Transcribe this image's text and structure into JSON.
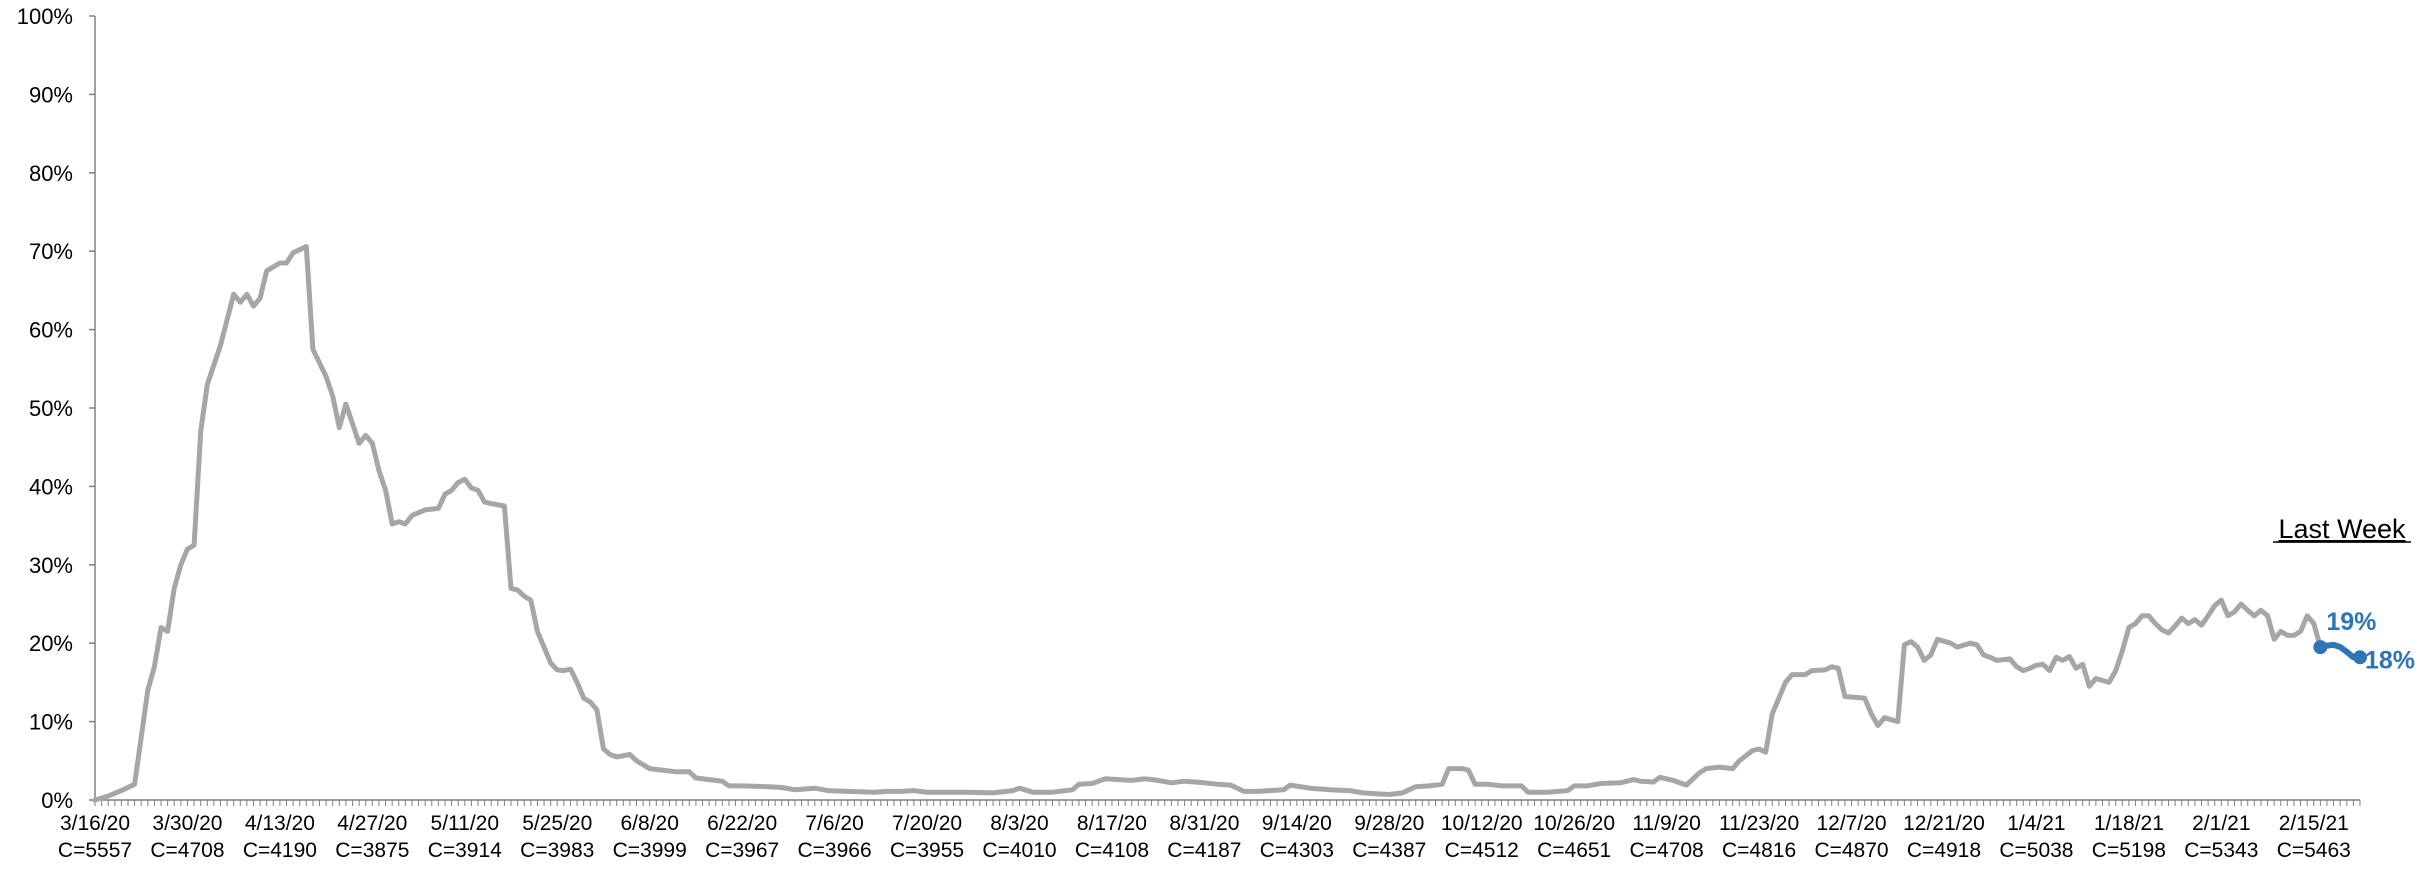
{
  "chart_data": {
    "type": "line",
    "title": "",
    "xlabel": "",
    "ylabel": "",
    "ylim": [
      0,
      100
    ],
    "y_tick_labels": [
      "0%",
      "10%",
      "20%",
      "30%",
      "40%",
      "50%",
      "60%",
      "70%",
      "80%",
      "90%",
      "100%"
    ],
    "grid": false,
    "x_tick_labels": [
      {
        "date": "3/16/20",
        "count": "C=5557"
      },
      {
        "date": "3/30/20",
        "count": "C=4708"
      },
      {
        "date": "4/13/20",
        "count": "C=4190"
      },
      {
        "date": "4/27/20",
        "count": "C=3875"
      },
      {
        "date": "5/11/20",
        "count": "C=3914"
      },
      {
        "date": "5/25/20",
        "count": "C=3983"
      },
      {
        "date": "6/8/20",
        "count": "C=3999"
      },
      {
        "date": "6/22/20",
        "count": "C=3967"
      },
      {
        "date": "7/6/20",
        "count": "C=3966"
      },
      {
        "date": "7/20/20",
        "count": "C=3955"
      },
      {
        "date": "8/3/20",
        "count": "C=4010"
      },
      {
        "date": "8/17/20",
        "count": "C=4108"
      },
      {
        "date": "8/31/20",
        "count": "C=4187"
      },
      {
        "date": "9/14/20",
        "count": "C=4303"
      },
      {
        "date": "9/28/20",
        "count": "C=4387"
      },
      {
        "date": "10/12/20",
        "count": "C=4512"
      },
      {
        "date": "10/26/20",
        "count": "C=4651"
      },
      {
        "date": "11/9/20",
        "count": "C=4708"
      },
      {
        "date": "11/23/20",
        "count": "C=4816"
      },
      {
        "date": "12/7/20",
        "count": "C=4870"
      },
      {
        "date": "12/21/20",
        "count": "C=4918"
      },
      {
        "date": "1/4/21",
        "count": "C=5038"
      },
      {
        "date": "1/18/21",
        "count": "C=5198"
      },
      {
        "date": "2/1/21",
        "count": "C=5343"
      },
      {
        "date": "2/15/21",
        "count": "C=5463"
      }
    ],
    "series": [
      {
        "color": "#A6A6A6",
        "points": [
          [
            "3/16/20",
            0
          ],
          [
            "3/18/20",
            0.5
          ],
          [
            "3/20/20",
            1.2
          ],
          [
            "3/22/20",
            2
          ],
          [
            "3/23/20",
            8
          ],
          [
            "3/24/20",
            14
          ],
          [
            "3/25/20",
            17
          ],
          [
            "3/26/20",
            22
          ],
          [
            "3/27/20",
            21.5
          ],
          [
            "3/28/20",
            27
          ],
          [
            "3/29/20",
            30
          ],
          [
            "3/30/20",
            32
          ],
          [
            "3/31/20",
            32.5
          ],
          [
            "4/1/20",
            47
          ],
          [
            "4/2/20",
            53
          ],
          [
            "4/4/20",
            58
          ],
          [
            "4/6/20",
            64.5
          ],
          [
            "4/7/20",
            63.5
          ],
          [
            "4/8/20",
            64.5
          ],
          [
            "4/9/20",
            63
          ],
          [
            "4/10/20",
            64
          ],
          [
            "4/11/20",
            67.5
          ],
          [
            "4/13/20",
            68.5
          ],
          [
            "4/14/20",
            68.5
          ],
          [
            "4/15/20",
            69.8
          ],
          [
            "4/17/20",
            70.6
          ],
          [
            "4/18/20",
            57.5
          ],
          [
            "4/20/20",
            54
          ],
          [
            "4/21/20",
            51.5
          ],
          [
            "4/22/20",
            47.5
          ],
          [
            "4/23/20",
            50.5
          ],
          [
            "4/24/20",
            48
          ],
          [
            "4/25/20",
            45.5
          ],
          [
            "4/26/20",
            46.5
          ],
          [
            "4/27/20",
            45.5
          ],
          [
            "4/28/20",
            42
          ],
          [
            "4/29/20",
            39.5
          ],
          [
            "4/30/20",
            35.2
          ],
          [
            "5/1/20",
            35.5
          ],
          [
            "5/2/20",
            35.2
          ],
          [
            "5/3/20",
            36.3
          ],
          [
            "5/5/20",
            37
          ],
          [
            "5/7/20",
            37.2
          ],
          [
            "5/8/20",
            39
          ],
          [
            "5/9/20",
            39.5
          ],
          [
            "5/10/20",
            40.5
          ],
          [
            "5/11/20",
            40.9
          ],
          [
            "5/12/20",
            39.8
          ],
          [
            "5/13/20",
            39.5
          ],
          [
            "5/14/20",
            38
          ],
          [
            "5/15/20",
            37.8
          ],
          [
            "5/17/20",
            37.5
          ],
          [
            "5/18/20",
            27
          ],
          [
            "5/19/20",
            26.8
          ],
          [
            "5/20/20",
            26
          ],
          [
            "5/21/20",
            25.5
          ],
          [
            "5/22/20",
            21.5
          ],
          [
            "5/23/20",
            19.5
          ],
          [
            "5/24/20",
            17.5
          ],
          [
            "5/25/20",
            16.6
          ],
          [
            "5/26/20",
            16.5
          ],
          [
            "5/27/20",
            16.7
          ],
          [
            "5/28/20",
            15
          ],
          [
            "5/29/20",
            13
          ],
          [
            "5/30/20",
            12.5
          ],
          [
            "5/31/20",
            11.5
          ],
          [
            "6/1/20",
            6.5
          ],
          [
            "6/2/20",
            5.8
          ],
          [
            "6/3/20",
            5.5
          ],
          [
            "6/5/20",
            5.8
          ],
          [
            "6/6/20",
            5
          ],
          [
            "6/8/20",
            4
          ],
          [
            "6/10/20",
            3.8
          ],
          [
            "6/12/20",
            3.6
          ],
          [
            "6/14/20",
            3.6
          ],
          [
            "6/15/20",
            2.8
          ],
          [
            "6/17/20",
            2.6
          ],
          [
            "6/19/20",
            2.4
          ],
          [
            "6/20/20",
            1.8
          ],
          [
            "6/22/20",
            1.8
          ],
          [
            "6/26/20",
            1.7
          ],
          [
            "6/28/20",
            1.6
          ],
          [
            "6/30/20",
            1.3
          ],
          [
            "7/3/20",
            1.5
          ],
          [
            "7/5/20",
            1.2
          ],
          [
            "7/8/20",
            1.1
          ],
          [
            "7/12/20",
            1
          ],
          [
            "7/14/20",
            1.1
          ],
          [
            "7/16/20",
            1.1
          ],
          [
            "7/18/20",
            1.2
          ],
          [
            "7/20/20",
            1
          ],
          [
            "7/26/20",
            1
          ],
          [
            "7/30/20",
            0.9
          ],
          [
            "8/2/20",
            1.2
          ],
          [
            "8/3/20",
            1.5
          ],
          [
            "8/5/20",
            1
          ],
          [
            "8/8/20",
            1
          ],
          [
            "8/11/20",
            1.3
          ],
          [
            "8/12/20",
            2
          ],
          [
            "8/14/20",
            2.1
          ],
          [
            "8/16/20",
            2.7
          ],
          [
            "8/18/20",
            2.6
          ],
          [
            "8/20/20",
            2.5
          ],
          [
            "8/22/20",
            2.7
          ],
          [
            "8/24/20",
            2.5
          ],
          [
            "8/26/20",
            2.2
          ],
          [
            "8/28/20",
            2.4
          ],
          [
            "8/31/20",
            2.2
          ],
          [
            "9/2/20",
            2
          ],
          [
            "9/4/20",
            1.9
          ],
          [
            "9/6/20",
            1.1
          ],
          [
            "9/8/20",
            1.1
          ],
          [
            "9/12/20",
            1.3
          ],
          [
            "9/13/20",
            1.9
          ],
          [
            "9/16/20",
            1.5
          ],
          [
            "9/19/20",
            1.3
          ],
          [
            "9/22/20",
            1.2
          ],
          [
            "9/24/20",
            0.9
          ],
          [
            "9/26/20",
            0.8
          ],
          [
            "9/28/20",
            0.7
          ],
          [
            "9/30/20",
            0.9
          ],
          [
            "10/2/20",
            1.7
          ],
          [
            "10/4/20",
            1.8
          ],
          [
            "10/6/20",
            2
          ],
          [
            "10/7/20",
            4
          ],
          [
            "10/9/20",
            4
          ],
          [
            "10/10/20",
            3.8
          ],
          [
            "10/11/20",
            2
          ],
          [
            "10/13/20",
            2
          ],
          [
            "10/15/20",
            1.8
          ],
          [
            "10/18/20",
            1.8
          ],
          [
            "10/19/20",
            1
          ],
          [
            "10/22/20",
            1
          ],
          [
            "10/25/20",
            1.2
          ],
          [
            "10/26/20",
            1.8
          ],
          [
            "10/28/20",
            1.8
          ],
          [
            "10/30/20",
            2.1
          ],
          [
            "11/2/20",
            2.2
          ],
          [
            "11/4/20",
            2.6
          ],
          [
            "11/5/20",
            2.4
          ],
          [
            "11/7/20",
            2.3
          ],
          [
            "11/8/20",
            2.9
          ],
          [
            "11/10/20",
            2.5
          ],
          [
            "11/12/20",
            1.9
          ],
          [
            "11/14/20",
            3.5
          ],
          [
            "11/15/20",
            4
          ],
          [
            "11/17/20",
            4.2
          ],
          [
            "11/19/20",
            4
          ],
          [
            "11/20/20",
            5
          ],
          [
            "11/22/20",
            6.3
          ],
          [
            "11/23/20",
            6.5
          ],
          [
            "11/24/20",
            6.1
          ],
          [
            "11/25/20",
            11
          ],
          [
            "11/26/20",
            13
          ],
          [
            "11/27/20",
            15
          ],
          [
            "11/28/20",
            16
          ],
          [
            "11/30/20",
            16
          ],
          [
            "12/1/20",
            16.5
          ],
          [
            "12/3/20",
            16.6
          ],
          [
            "12/4/20",
            17
          ],
          [
            "12/5/20",
            16.8
          ],
          [
            "12/6/20",
            13.2
          ],
          [
            "12/9/20",
            13
          ],
          [
            "12/10/20",
            11
          ],
          [
            "12/11/20",
            9.5
          ],
          [
            "12/12/20",
            10.5
          ],
          [
            "12/14/20",
            10
          ],
          [
            "12/15/20",
            19.8
          ],
          [
            "12/16/20",
            20.2
          ],
          [
            "12/17/20",
            19.5
          ],
          [
            "12/18/20",
            17.8
          ],
          [
            "12/19/20",
            18.5
          ],
          [
            "12/20/20",
            20.5
          ],
          [
            "12/22/20",
            20
          ],
          [
            "12/23/20",
            19.5
          ],
          [
            "12/25/20",
            20
          ],
          [
            "12/26/20",
            19.8
          ],
          [
            "12/27/20",
            18.5
          ],
          [
            "12/28/20",
            18.2
          ],
          [
            "12/29/20",
            17.8
          ],
          [
            "12/31/20",
            18
          ],
          [
            "1/1/21",
            17
          ],
          [
            "1/2/21",
            16.5
          ],
          [
            "1/3/21",
            16.8
          ],
          [
            "1/4/21",
            17.2
          ],
          [
            "1/5/21",
            17.3
          ],
          [
            "1/6/21",
            16.5
          ],
          [
            "1/7/21",
            18.2
          ],
          [
            "1/8/21",
            17.8
          ],
          [
            "1/9/21",
            18.3
          ],
          [
            "1/10/21",
            16.8
          ],
          [
            "1/11/21",
            17.3
          ],
          [
            "1/12/21",
            14.5
          ],
          [
            "1/13/21",
            15.5
          ],
          [
            "1/15/21",
            15
          ],
          [
            "1/16/21",
            16.5
          ],
          [
            "1/17/21",
            19
          ],
          [
            "1/18/21",
            22
          ],
          [
            "1/19/21",
            22.5
          ],
          [
            "1/20/21",
            23.5
          ],
          [
            "1/21/21",
            23.5
          ],
          [
            "1/22/21",
            22.5
          ],
          [
            "1/23/21",
            21.7
          ],
          [
            "1/24/21",
            21.3
          ],
          [
            "1/25/21",
            22.2
          ],
          [
            "1/26/21",
            23.2
          ],
          [
            "1/27/21",
            22.5
          ],
          [
            "1/28/21",
            23
          ],
          [
            "1/29/21",
            22.3
          ],
          [
            "1/30/21",
            23.5
          ],
          [
            "1/31/21",
            24.8
          ],
          [
            "2/1/21",
            25.5
          ],
          [
            "2/2/21",
            23.5
          ],
          [
            "2/3/21",
            24
          ],
          [
            "2/4/21",
            25
          ],
          [
            "2/5/21",
            24.2
          ],
          [
            "2/6/21",
            23.5
          ],
          [
            "2/7/21",
            24.2
          ],
          [
            "2/8/21",
            23.5
          ],
          [
            "2/9/21",
            20.5
          ],
          [
            "2/10/21",
            21.5
          ],
          [
            "2/11/21",
            21
          ],
          [
            "2/12/21",
            21
          ],
          [
            "2/13/21",
            21.5
          ],
          [
            "2/14/21",
            23.5
          ],
          [
            "2/15/21",
            22.5
          ],
          [
            "2/16/21",
            19.5
          ]
        ]
      },
      {
        "color": "#2E75B6",
        "points": [
          [
            "2/16/21",
            19.5
          ],
          [
            "2/17/21",
            19.7
          ],
          [
            "2/18/21",
            19.8
          ],
          [
            "2/19/21",
            19.5
          ],
          [
            "2/20/21",
            18.9
          ],
          [
            "2/21/21",
            18.2
          ],
          [
            "2/22/21",
            18.2
          ]
        ]
      }
    ],
    "annotations": {
      "last_week_label": "Last Week",
      "start_value_label": "19%",
      "end_value_label": "18%"
    }
  }
}
